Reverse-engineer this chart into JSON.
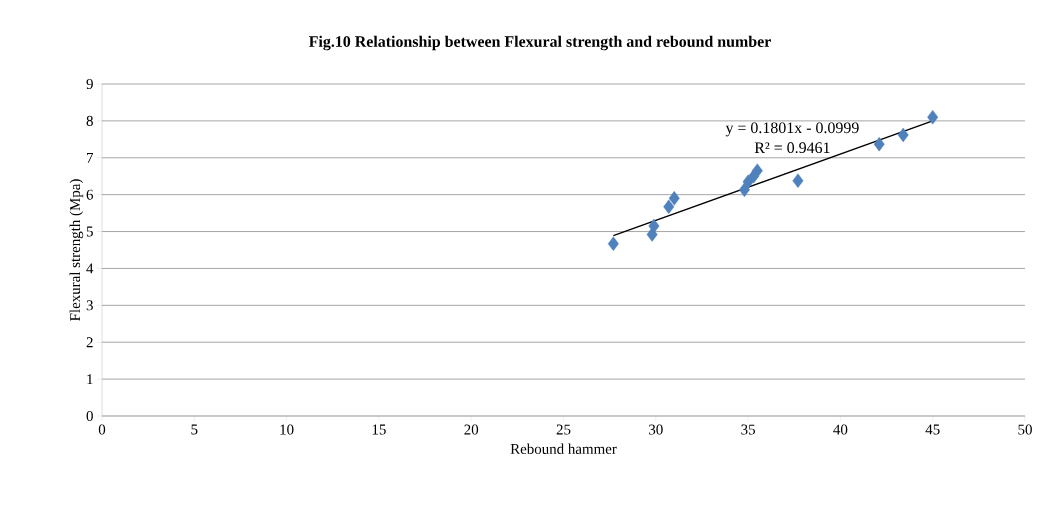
{
  "chart_data": {
    "type": "scatter",
    "title": "Fig.10 Relationship between Flexural strength and rebound number",
    "xlabel": "Rebound hammer",
    "ylabel": "Flexural strength (Mpa)",
    "annotations": [
      "y = 0.1801x - 0.0999",
      "R² = 0.9461"
    ],
    "xlim": [
      0,
      50
    ],
    "ylim": [
      0,
      9
    ],
    "xticks": [
      0,
      5,
      10,
      15,
      20,
      25,
      30,
      35,
      40,
      45,
      50
    ],
    "yticks": [
      0,
      1,
      2,
      3,
      4,
      5,
      6,
      7,
      8,
      9
    ],
    "grid": "y",
    "series": [
      {
        "marker": "diamond",
        "color": "#4f81bd",
        "x": [
          27.7,
          29.8,
          29.9,
          30.7,
          31.0,
          34.8,
          35.0,
          35.3,
          35.5,
          37.7,
          42.1,
          43.4,
          45.0
        ],
        "values": [
          4.67,
          4.92,
          5.15,
          5.67,
          5.9,
          6.13,
          6.35,
          6.5,
          6.65,
          6.38,
          7.37,
          7.62,
          8.1
        ]
      },
      {
        "type": "line",
        "marker": "none",
        "color": "#000000",
        "x": [
          27.7,
          45.0
        ],
        "values": [
          4.89,
          8.0
        ]
      }
    ]
  }
}
